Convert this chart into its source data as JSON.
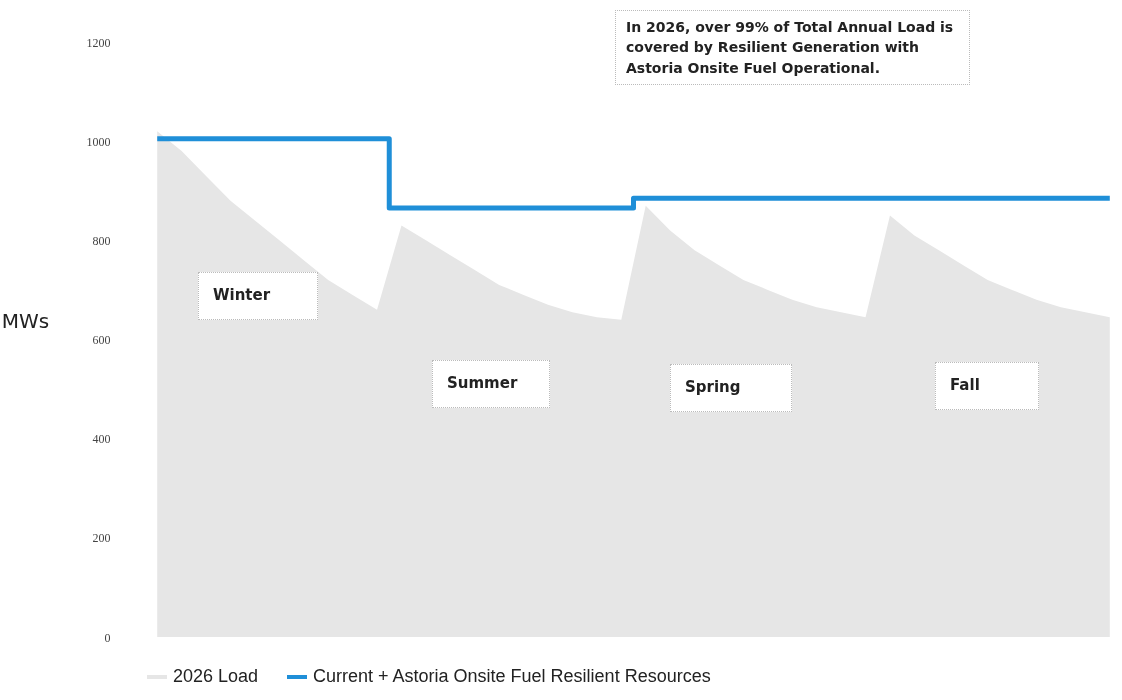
{
  "chart_data": {
    "type": "step",
    "ylabel": "MWs",
    "ylim": [
      0,
      1200
    ],
    "yticks": [
      0,
      200,
      400,
      600,
      800,
      1000,
      1200
    ],
    "tick_labels": "y",
    "legend": "bottom",
    "categories": [
      null,
      null,
      null,
      null,
      null,
      null,
      null,
      null,
      null,
      null,
      null,
      null,
      null,
      null,
      null,
      null,
      null,
      null,
      null,
      null,
      null,
      null,
      null,
      null,
      null,
      null,
      null,
      null,
      null,
      null,
      null,
      null,
      null,
      null,
      null,
      null,
      null,
      null,
      null,
      null
    ],
    "series": [
      {
        "name": "2026 Load",
        "type": "area",
        "color": "#e6e6e6",
        "values": [
          1020,
          980,
          930,
          880,
          840,
          800,
          760,
          720,
          690,
          660,
          830,
          800,
          770,
          740,
          710,
          690,
          670,
          655,
          645,
          640,
          870,
          820,
          780,
          750,
          720,
          700,
          680,
          665,
          655,
          645,
          850,
          810,
          780,
          750,
          720,
          700,
          680,
          665,
          655,
          645
        ]
      },
      {
        "name": "Current + Astoria Onsite Fuel Resilient Resources",
        "color": "#1f8fd8",
        "values": [
          1005,
          1005,
          1005,
          1005,
          1005,
          1005,
          1005,
          1005,
          1005,
          1005,
          865,
          865,
          865,
          865,
          865,
          865,
          865,
          865,
          865,
          865,
          885,
          885,
          885,
          885,
          885,
          885,
          885,
          885,
          885,
          885,
          885,
          885,
          885,
          885,
          885,
          885,
          885,
          885,
          885,
          885
        ]
      }
    ],
    "annotations": [
      "In 2026, over 99% of Total Annual Load is covered by Resilient Generation with Astoria Onsite Fuel Operational.",
      "Winter",
      "Summer",
      "Spring",
      "Fall"
    ]
  }
}
